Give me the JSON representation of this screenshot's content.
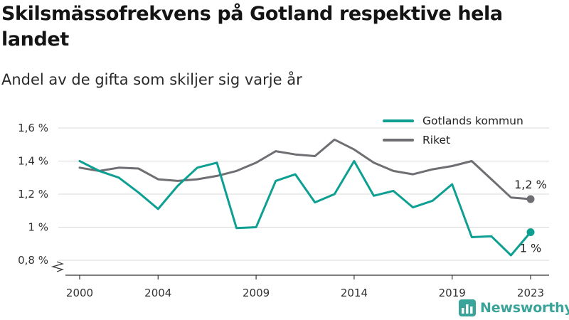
{
  "title": "Skilsmässofrekvens på Gotland respektive hela landet",
  "subtitle": "Andel av de gifta som skiljer sig varje år",
  "brand": {
    "name": "Newsworthy",
    "color": "#3aa39a",
    "icon": "bar-chart-logo-icon"
  },
  "chart_data": {
    "type": "line",
    "x": [
      2000,
      2001,
      2002,
      2003,
      2004,
      2005,
      2006,
      2007,
      2008,
      2009,
      2010,
      2011,
      2012,
      2013,
      2014,
      2015,
      2016,
      2017,
      2018,
      2019,
      2020,
      2021,
      2022,
      2023
    ],
    "x_ticks": [
      2000,
      2004,
      2009,
      2014,
      2019,
      2023
    ],
    "x_tick_labels": [
      "2000",
      "2004",
      "2009",
      "2014",
      "2019",
      "2023"
    ],
    "ylim": [
      0.8,
      1.6
    ],
    "y_ticks": [
      0.8,
      1.0,
      1.2,
      1.4,
      1.6
    ],
    "y_tick_labels": [
      "0,8 %",
      "1 %",
      "1,2 %",
      "1,4 %",
      "1,6 %"
    ],
    "y_axis_break": true,
    "grid": true,
    "legend_position": "top-right",
    "series": [
      {
        "name": "Gotlands kommun",
        "color": "#0e9f93",
        "values": [
          1.4,
          1.34,
          1.3,
          1.21,
          1.11,
          1.25,
          1.36,
          1.39,
          0.995,
          1.0,
          1.28,
          1.32,
          1.15,
          1.2,
          1.4,
          1.19,
          1.22,
          1.12,
          1.16,
          1.26,
          0.94,
          0.945,
          0.83,
          0.97
        ],
        "end_label": "1 %"
      },
      {
        "name": "Riket",
        "color": "#6f6f73",
        "values": [
          1.36,
          1.34,
          1.36,
          1.355,
          1.29,
          1.28,
          1.29,
          1.31,
          1.34,
          1.39,
          1.46,
          1.44,
          1.43,
          1.53,
          1.47,
          1.39,
          1.34,
          1.32,
          1.35,
          1.37,
          1.4,
          1.29,
          1.18,
          1.17
        ],
        "end_label": "1,2 %"
      }
    ]
  }
}
